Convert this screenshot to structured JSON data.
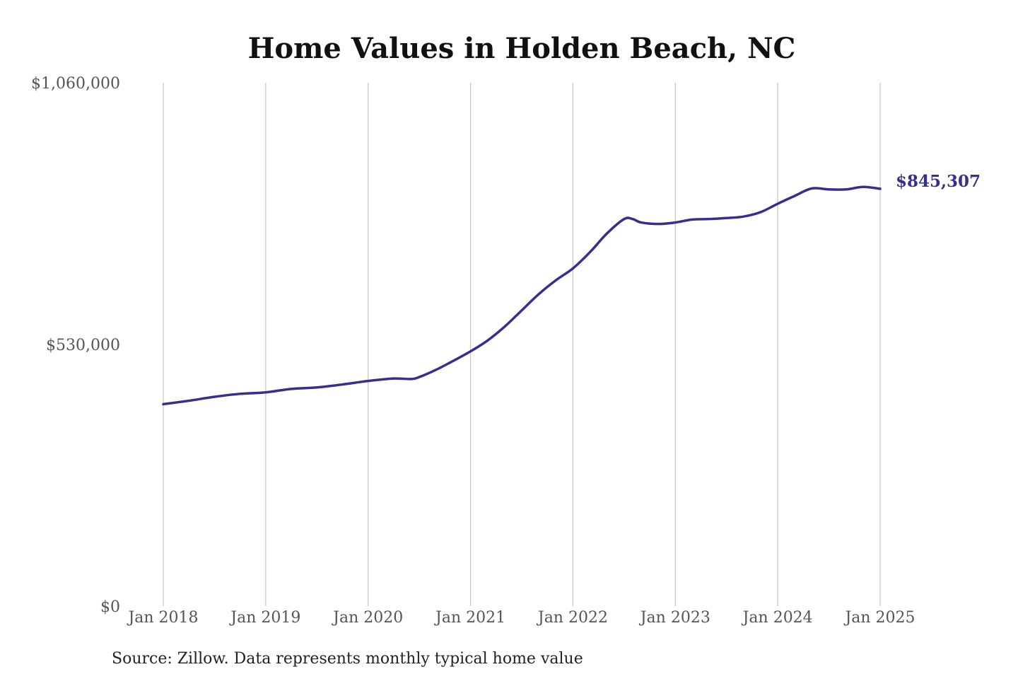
{
  "chart_data": {
    "type": "line",
    "title": "Home Values in Holden Beach, NC",
    "source_note": "Source: Zillow. Data represents monthly typical home value",
    "xlabel": "",
    "ylabel": "",
    "x_ticks": [
      "Jan 2018",
      "Jan 2019",
      "Jan 2020",
      "Jan 2021",
      "Jan 2022",
      "Jan 2023",
      "Jan 2024",
      "Jan 2025"
    ],
    "y_ticks": [
      "$0",
      "$530,000",
      "$1,060,000"
    ],
    "ylim": [
      0,
      1060000
    ],
    "grid": "vertical lines at year ticks",
    "line_color": "#35308f",
    "end_label": "$845,307",
    "series": [
      {
        "x": [
          "2018-01",
          "2018-04",
          "2018-07",
          "2018-10",
          "2019-01",
          "2019-04",
          "2019-07",
          "2019-10",
          "2020-01",
          "2020-04",
          "2020-06",
          "2020-07",
          "2020-09",
          "2020-11",
          "2021-01",
          "2021-03",
          "2021-05",
          "2021-07",
          "2021-09",
          "2021-11",
          "2022-01",
          "2022-03",
          "2022-05",
          "2022-07",
          "2022-08",
          "2022-09",
          "2022-11",
          "2023-01",
          "2023-03",
          "2023-05",
          "2023-07",
          "2023-09",
          "2023-11",
          "2024-01",
          "2024-03",
          "2024-05",
          "2024-07",
          "2024-09",
          "2024-11",
          "2025-01"
        ],
        "values": [
          409000,
          416000,
          424000,
          430000,
          433000,
          440000,
          443000,
          449000,
          456000,
          461000,
          460000,
          464000,
          479000,
          497000,
          516000,
          538000,
          566000,
          599000,
          632000,
          660000,
          684000,
          717000,
          755000,
          784000,
          784000,
          777000,
          774000,
          777000,
          783000,
          784000,
          786000,
          789000,
          798000,
          815000,
          831000,
          846000,
          844000,
          844000,
          849000,
          845307
        ]
      }
    ]
  }
}
